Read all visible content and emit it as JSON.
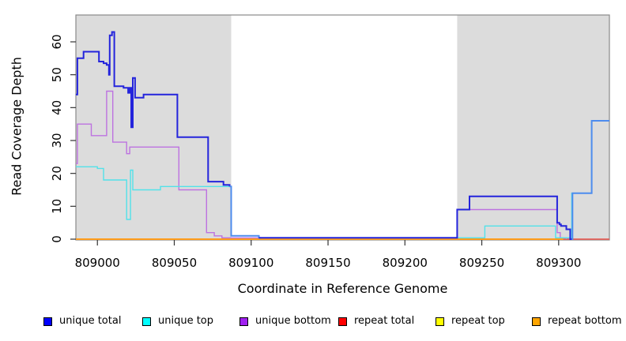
{
  "chart_data": {
    "type": "line",
    "style": "step",
    "title": "",
    "xlabel": "Coordinate in Reference Genome",
    "ylabel": "Read Coverage Depth",
    "xlim": [
      808986,
      809333
    ],
    "ylim": [
      0,
      68
    ],
    "x_ticks": [
      809000,
      809050,
      809100,
      809150,
      809200,
      809250,
      809300
    ],
    "y_ticks": [
      0,
      10,
      20,
      30,
      40,
      50,
      60
    ],
    "grid": false,
    "plot_bg": "#ffffff",
    "band_color": "#dcdcdc",
    "box_color": "#8a8a8a",
    "background_bands": [
      {
        "from": 808986,
        "to": 809087
      },
      {
        "from": 809234,
        "to": 809333
      }
    ],
    "legend": {
      "position": "bottom",
      "items": [
        {
          "label": "unique total",
          "color": "#0000ff"
        },
        {
          "label": "unique top",
          "color": "#00ffff"
        },
        {
          "label": "unique bottom",
          "color": "#a020f0"
        },
        {
          "label": "repeat total",
          "color": "#ff0000"
        },
        {
          "label": "repeat top",
          "color": "#ffff00"
        },
        {
          "label": "repeat bottom",
          "color": "#ffa500"
        }
      ]
    },
    "series": [
      {
        "name": "repeat top",
        "line_width": 1.4,
        "parts": [
          {
            "color": "#ffe400",
            "points": [
              [
                808986,
                0
              ],
              [
                809333,
                0
              ]
            ]
          }
        ]
      },
      {
        "name": "repeat total",
        "line_width": 1.6,
        "parts": [
          {
            "color": "#e24a68",
            "points": [
              [
                808986,
                0
              ],
              [
                809333,
                0
              ]
            ]
          }
        ]
      },
      {
        "name": "repeat bottom",
        "line_width": 2,
        "parts": [
          {
            "color": "#ff9d1c",
            "points": [
              [
                808986,
                0
              ],
              [
                809303,
                0
              ]
            ]
          }
        ]
      },
      {
        "name": "unique bottom",
        "line_width": 1.4,
        "parts": [
          {
            "color": "#bd72e0",
            "points": [
              [
                808986,
                23
              ],
              [
                808987,
                35
              ],
              [
                808996,
                31.5
              ],
              [
                809006,
                45
              ],
              [
                809010,
                29.5
              ],
              [
                809019,
                26
              ],
              [
                809021,
                28
              ],
              [
                809053,
                15
              ],
              [
                809071,
                2
              ],
              [
                809076,
                1
              ],
              [
                809081,
                0.4
              ],
              [
                809234,
                9
              ],
              [
                809299,
                2
              ],
              [
                809301,
                0.4
              ],
              [
                809305,
                0
              ]
            ]
          }
        ]
      },
      {
        "name": "unique top",
        "line_width": 1.4,
        "parts": [
          {
            "color": "#52e2e9",
            "points": [
              [
                808986,
                22
              ],
              [
                809000,
                21.5
              ],
              [
                809004,
                18
              ],
              [
                809019,
                6
              ],
              [
                809021.5,
                21
              ],
              [
                809023,
                15
              ],
              [
                809041,
                16
              ],
              [
                809087,
                1
              ],
              [
                809105,
                0.4
              ],
              [
                809252,
                4
              ],
              [
                809298,
                0.4
              ],
              [
                809308.5,
                14
              ],
              [
                809321.5,
                36
              ],
              [
                809333,
                36
              ]
            ]
          }
        ]
      },
      {
        "name": "unique total",
        "line_width": 2,
        "parts": [
          {
            "color": "#2424dc",
            "points": [
              [
                808986,
                44
              ],
              [
                808987,
                55
              ],
              [
                808991,
                57
              ],
              [
                809001,
                54
              ],
              [
                809004,
                53.5
              ],
              [
                809006,
                53
              ],
              [
                809007.5,
                50
              ],
              [
                809008,
                62
              ],
              [
                809009.5,
                63
              ],
              [
                809011,
                46.5
              ],
              [
                809017,
                46
              ],
              [
                809020,
                44.5
              ],
              [
                809021,
                46
              ],
              [
                809022,
                34
              ],
              [
                809023,
                49
              ],
              [
                809024.5,
                43
              ],
              [
                809030,
                44
              ],
              [
                809052,
                31
              ],
              [
                809072,
                17.5
              ],
              [
                809082,
                16.5
              ],
              [
                809086,
                16
              ]
            ]
          },
          {
            "color": "#4d8cee",
            "points": [
              [
                809086,
                16
              ],
              [
                809087,
                1
              ],
              [
                809105,
                0.4
              ],
              [
                809106,
                0.4
              ]
            ]
          },
          {
            "color": "#2424dc",
            "points": [
              [
                809105,
                0.4
              ],
              [
                809234,
                9
              ],
              [
                809242,
                13
              ],
              [
                809299,
                5
              ],
              [
                809300.5,
                4.5
              ],
              [
                809301.5,
                4
              ],
              [
                809305,
                3
              ],
              [
                809307.5,
                0
              ],
              [
                809308.5,
                0
              ]
            ]
          },
          {
            "color": "#4d8cee",
            "points": [
              [
                809308.5,
                0
              ],
              [
                809309,
                14
              ],
              [
                809321.5,
                36
              ],
              [
                809333,
                36
              ]
            ]
          }
        ]
      }
    ]
  }
}
